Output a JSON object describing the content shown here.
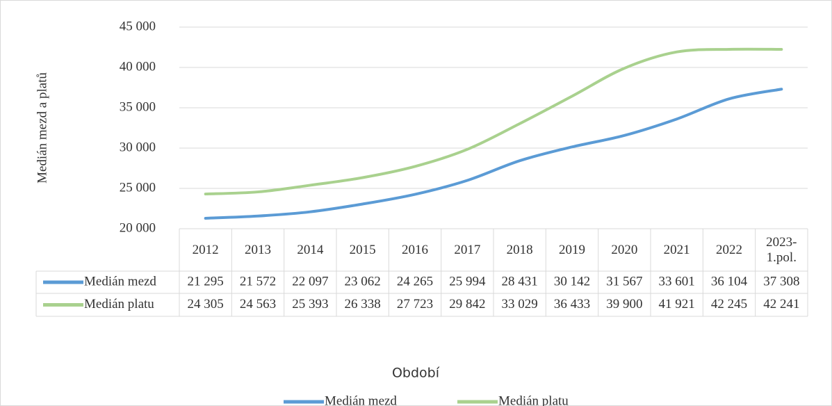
{
  "chart_data": {
    "type": "line",
    "y_axis_label": "Medián mezd a platů",
    "x_axis_label": "Období",
    "categories": [
      "2012",
      "2013",
      "2014",
      "2015",
      "2016",
      "2017",
      "2018",
      "2019",
      "2020",
      "2021",
      "2022",
      "2023-1.pol."
    ],
    "series": [
      {
        "name": "Medián mezd",
        "color": "#5b9bd5",
        "values": [
          21295,
          21572,
          22097,
          23062,
          24265,
          25994,
          28431,
          30142,
          31567,
          33601,
          36104,
          37308
        ],
        "value_labels": [
          "21 295",
          "21 572",
          "22 097",
          "23 062",
          "24 265",
          "25 994",
          "28 431",
          "30 142",
          "31 567",
          "33 601",
          "36 104",
          "37 308"
        ]
      },
      {
        "name": "Medián platu",
        "color": "#a9d18e",
        "values": [
          24305,
          24563,
          25393,
          26338,
          27723,
          29842,
          33029,
          36433,
          39900,
          41921,
          42245,
          42241
        ],
        "value_labels": [
          "24 305",
          "24 563",
          "25 393",
          "26 338",
          "27 723",
          "29 842",
          "33 029",
          "36 433",
          "39 900",
          "41 921",
          "42 245",
          "42 241"
        ]
      }
    ],
    "ylim": [
      20000,
      45000
    ],
    "yticks": [
      {
        "value": 20000,
        "label": "20 000"
      },
      {
        "value": 25000,
        "label": "25 000"
      },
      {
        "value": 30000,
        "label": "30 000"
      },
      {
        "value": 35000,
        "label": "35 000"
      },
      {
        "value": 40000,
        "label": "40 000"
      },
      {
        "value": 45000,
        "label": "45 000"
      }
    ],
    "grid": true,
    "legend": "bottom"
  }
}
